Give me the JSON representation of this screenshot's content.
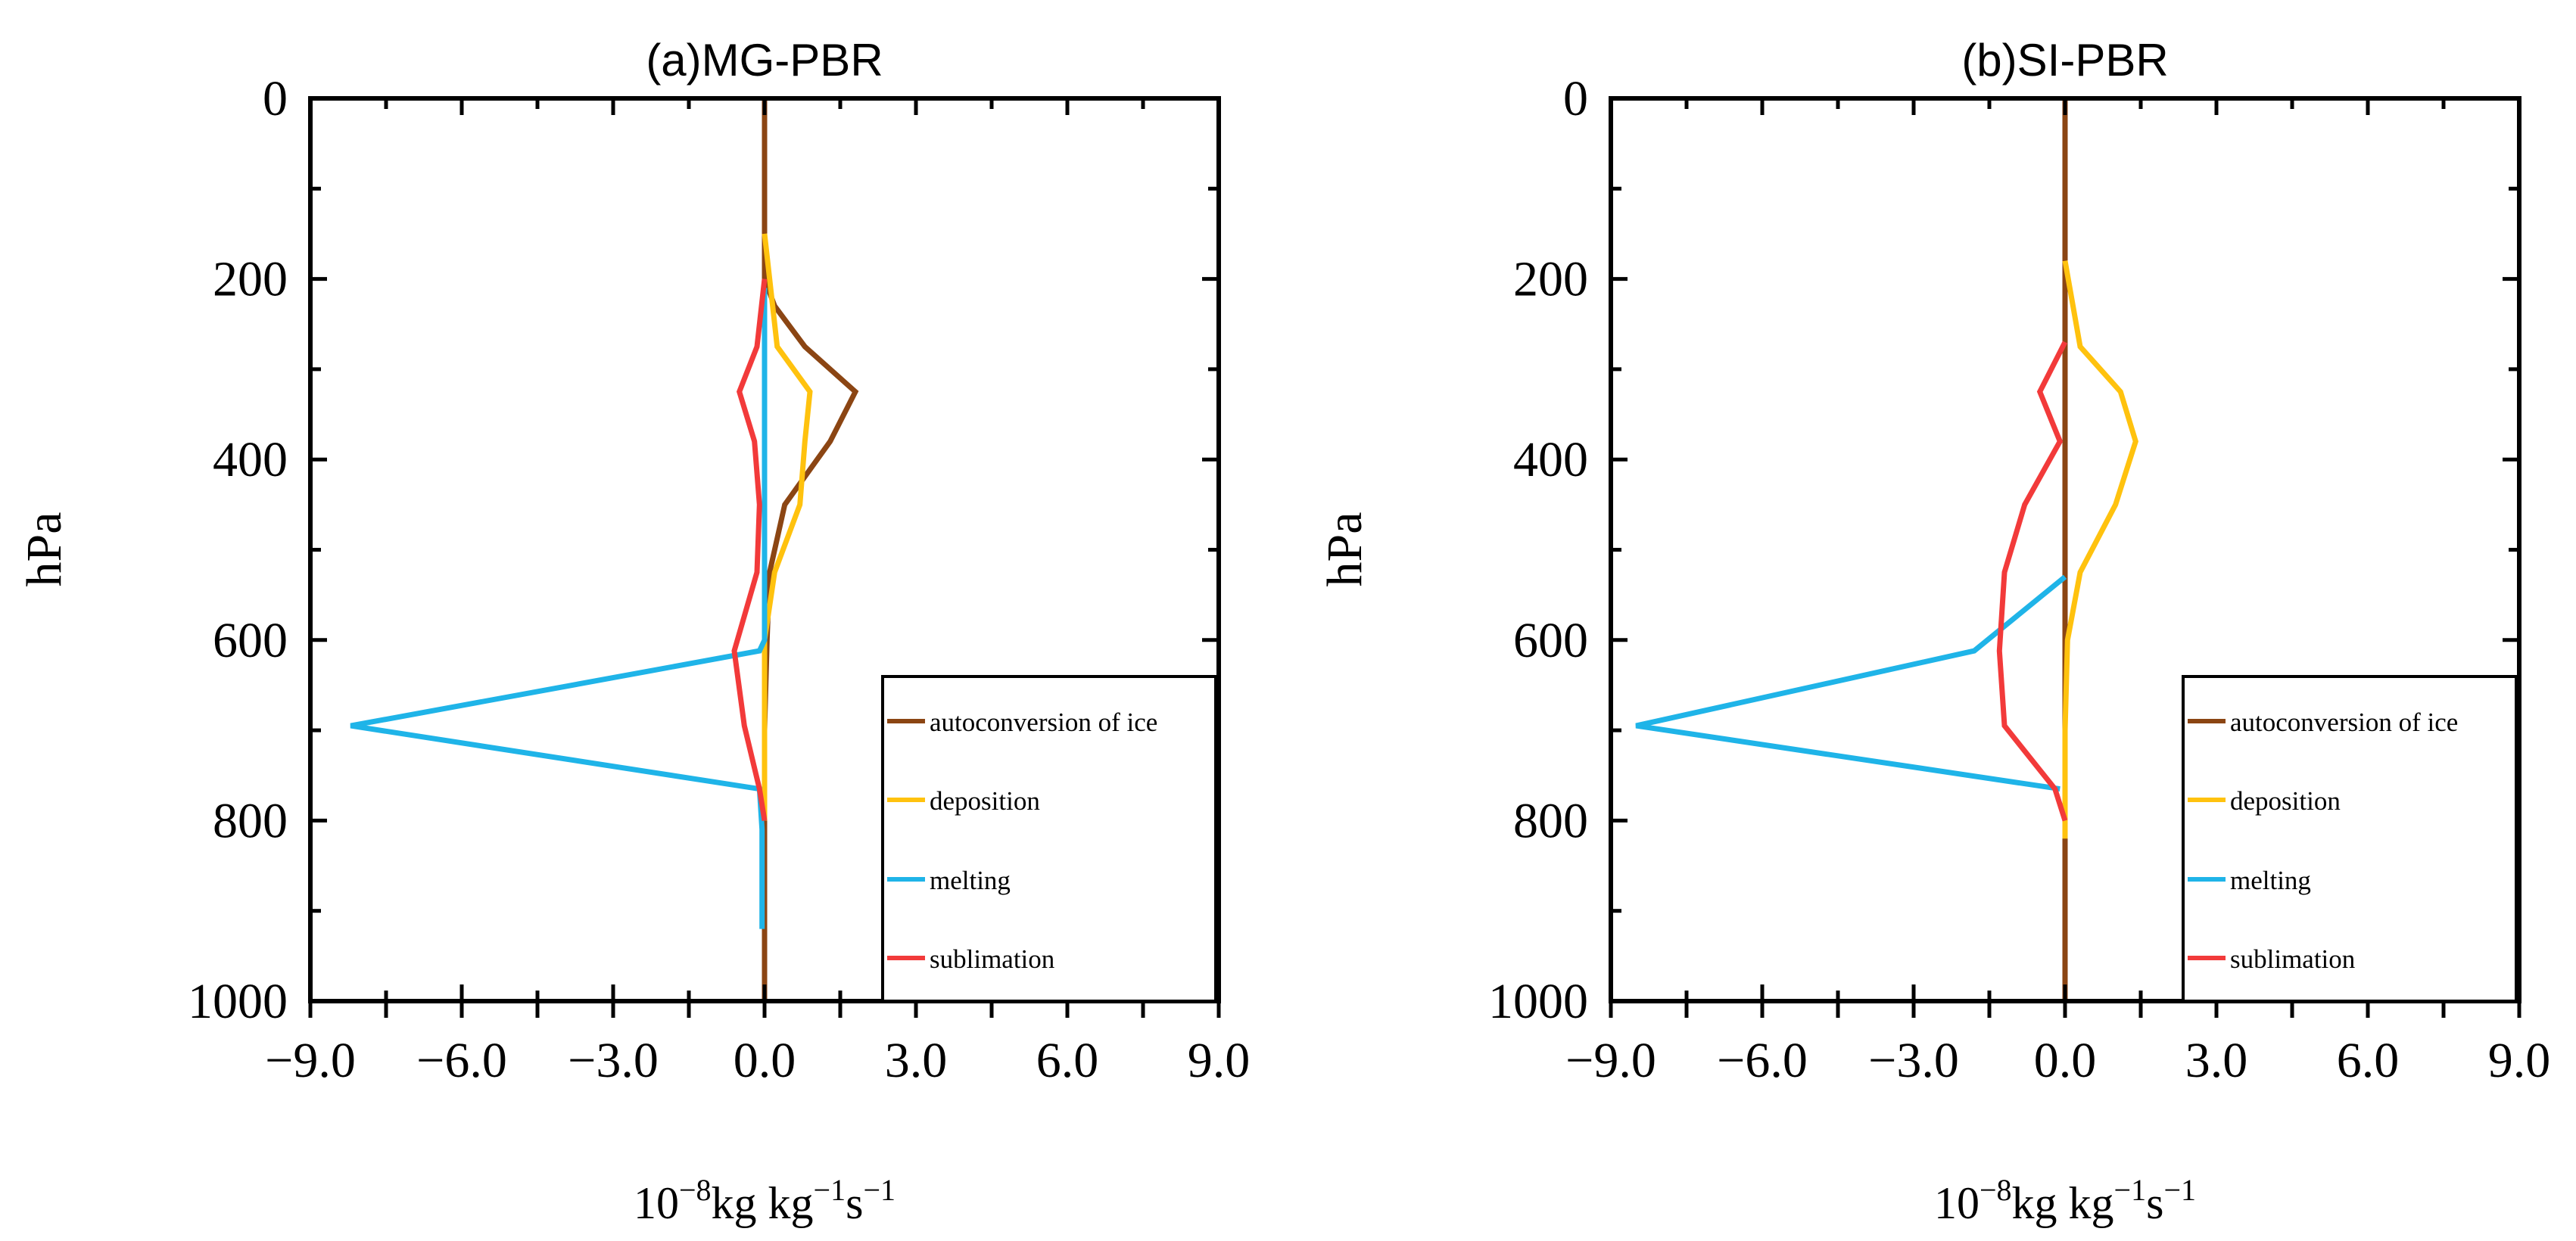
{
  "chart_data": [
    {
      "type": "line",
      "title": "(a)MG-PBR",
      "ylabel": "hPa",
      "xlabel": {
        "base": "10",
        "exp1": "−8",
        "mid": "kg kg",
        "exp2": "−1",
        "unit": "s",
        "exp3": "−1"
      },
      "xlim": [
        -9.0,
        9.0
      ],
      "ylim": [
        1000,
        0
      ],
      "xticks": [
        -9.0,
        -6.0,
        -3.0,
        0.0,
        3.0,
        6.0,
        9.0
      ],
      "xtick_labels": [
        "−9.0",
        "−6.0",
        "−3.0",
        "0.0",
        "3.0",
        "6.0",
        "9.0"
      ],
      "yticks": [
        0,
        200,
        400,
        600,
        800,
        1000
      ],
      "ytick_labels": [
        "0",
        "200",
        "400",
        "600",
        "800",
        "1000"
      ],
      "legend_position": "bottom-right",
      "series": [
        {
          "name": "autoconversion of ice",
          "color": "#8B4513",
          "points": [
            [
              0,
              0
            ],
            [
              0,
              100
            ],
            [
              0,
              150
            ],
            [
              0,
              200
            ],
            [
              0.2,
              230
            ],
            [
              0.8,
              275
            ],
            [
              1.8,
              325
            ],
            [
              1.3,
              380
            ],
            [
              0.4,
              450
            ],
            [
              0.1,
              525
            ],
            [
              0.05,
              600
            ],
            [
              0,
              700
            ],
            [
              0,
              800
            ],
            [
              0,
              1000
            ]
          ]
        },
        {
          "name": "deposition",
          "color": "#FFC20E",
          "points": [
            [
              0,
              150
            ],
            [
              0.1,
              200
            ],
            [
              0.25,
              275
            ],
            [
              0.9,
              325
            ],
            [
              0.8,
              380
            ],
            [
              0.7,
              450
            ],
            [
              0.2,
              525
            ],
            [
              0,
              600
            ],
            [
              0,
              700
            ],
            [
              0,
              800
            ]
          ]
        },
        {
          "name": "melting",
          "color": "#1FB4E8",
          "points": [
            [
              0,
              210
            ],
            [
              0,
              400
            ],
            [
              0,
              600
            ],
            [
              -0.1,
              612
            ],
            [
              -8.2,
              695
            ],
            [
              -0.1,
              765
            ],
            [
              -0.05,
              810
            ],
            [
              -0.05,
              920
            ]
          ]
        },
        {
          "name": "sublimation",
          "color": "#F23A3A",
          "points": [
            [
              0,
              200
            ],
            [
              -0.15,
              275
            ],
            [
              -0.5,
              325
            ],
            [
              -0.2,
              380
            ],
            [
              -0.1,
              450
            ],
            [
              -0.15,
              525
            ],
            [
              -0.6,
              612
            ],
            [
              -0.4,
              695
            ],
            [
              -0.1,
              765
            ],
            [
              0,
              800
            ]
          ]
        }
      ]
    },
    {
      "type": "line",
      "title": "(b)SI-PBR",
      "ylabel": "hPa",
      "xlabel": {
        "base": "10",
        "exp1": "−8",
        "mid": "kg kg",
        "exp2": "−1",
        "unit": "s",
        "exp3": "−1"
      },
      "xlim": [
        -9.0,
        9.0
      ],
      "ylim": [
        1000,
        0
      ],
      "xticks": [
        -9.0,
        -6.0,
        -3.0,
        0.0,
        3.0,
        6.0,
        9.0
      ],
      "xtick_labels": [
        "−9.0",
        "−6.0",
        "−3.0",
        "0.0",
        "3.0",
        "6.0",
        "9.0"
      ],
      "yticks": [
        0,
        200,
        400,
        600,
        800,
        1000
      ],
      "ytick_labels": [
        "0",
        "200",
        "400",
        "600",
        "800",
        "1000"
      ],
      "legend_position": "bottom-right",
      "series": [
        {
          "name": "autoconversion of ice",
          "color": "#8B4513",
          "points": [
            [
              0,
              0
            ],
            [
              0,
              200
            ],
            [
              0,
              400
            ],
            [
              0,
              600
            ],
            [
              0,
              800
            ],
            [
              0,
              1000
            ]
          ]
        },
        {
          "name": "deposition",
          "color": "#FFC20E",
          "points": [
            [
              0,
              180
            ],
            [
              0.3,
              275
            ],
            [
              1.1,
              325
            ],
            [
              1.4,
              380
            ],
            [
              1.0,
              450
            ],
            [
              0.3,
              525
            ],
            [
              0.05,
              600
            ],
            [
              0,
              700
            ],
            [
              0,
              820
            ]
          ]
        },
        {
          "name": "melting",
          "color": "#1FB4E8",
          "points": [
            [
              0,
              530
            ],
            [
              -1.8,
              612
            ],
            [
              -8.5,
              695
            ],
            [
              -0.1,
              765
            ]
          ]
        },
        {
          "name": "sublimation",
          "color": "#F23A3A",
          "points": [
            [
              0,
              270
            ],
            [
              -0.5,
              325
            ],
            [
              -0.1,
              380
            ],
            [
              -0.8,
              450
            ],
            [
              -1.2,
              525
            ],
            [
              -1.3,
              612
            ],
            [
              -1.2,
              695
            ],
            [
              -0.2,
              765
            ],
            [
              0,
              800
            ]
          ]
        }
      ]
    }
  ]
}
